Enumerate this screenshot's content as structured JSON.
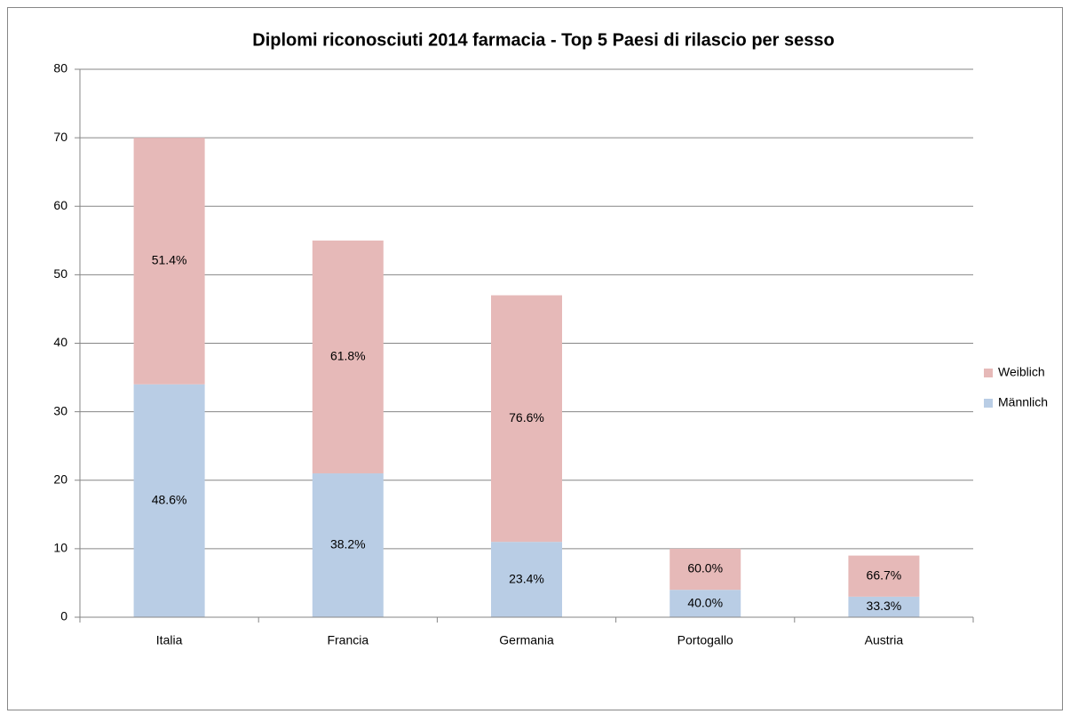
{
  "chart_data": {
    "type": "stacked_bar",
    "title": "Diplomi riconosciuti 2014 farmacia - Top 5 Paesi di rilascio per sesso",
    "categories": [
      "Italia",
      "Francia",
      "Germania",
      "Portogallo",
      "Austria"
    ],
    "series": [
      {
        "name": "Männlich",
        "color": "#b9cde5",
        "values": [
          34,
          21,
          11,
          4,
          3
        ],
        "value_labels": [
          "48.6%",
          "38.2%",
          "23.4%",
          "40.0%",
          "33.3%"
        ]
      },
      {
        "name": "Weiblich",
        "color": "#e6b9b8",
        "values": [
          36,
          34,
          36,
          6,
          6
        ],
        "value_labels": [
          "51.4%",
          "61.8%",
          "76.6%",
          "60.0%",
          "66.7%"
        ]
      }
    ],
    "ylim": [
      0,
      80
    ],
    "yticks": [
      0,
      10,
      20,
      30,
      40,
      50,
      60,
      70,
      80
    ],
    "grid": true,
    "legend": "right"
  }
}
